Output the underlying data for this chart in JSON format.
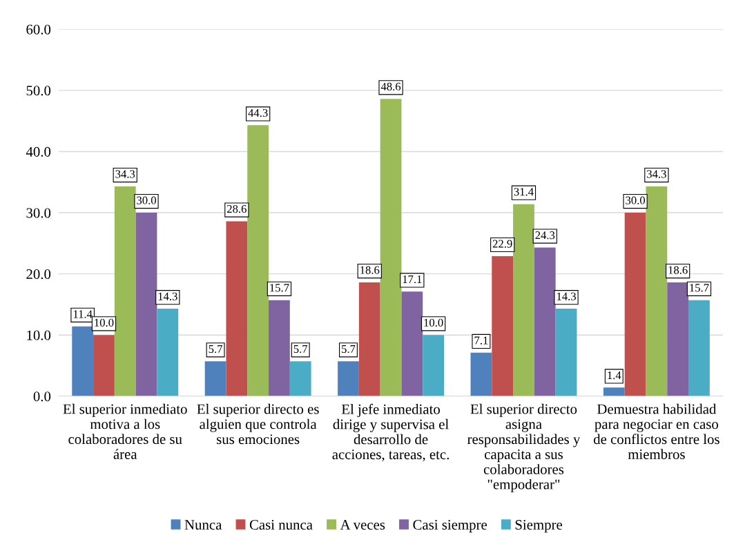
{
  "chart_data": {
    "type": "bar",
    "categories": [
      "El superior inmediato\nmotiva a los\ncolaboradores de su\nárea",
      "El superior directo es\nalguien que controla\nsus emociones",
      "El jefe inmediato\ndirige y supervisa el\ndesarrollo de\nacciones, tareas, etc.",
      "El superior directo\nasigna\nresponsabilidades y\ncapacita a sus\ncolaboradores\n\"empoderar\"",
      "Demuestra habilidad\npara negociar en caso\nde conflictos entre los\nmiembros"
    ],
    "series": [
      {
        "name": "Nunca",
        "color": "#4f81bd",
        "values": [
          11.4,
          5.7,
          5.7,
          7.1,
          1.4
        ],
        "value_labels": [
          "11.4",
          "5.7",
          "5.7",
          "7.1",
          "1.4"
        ]
      },
      {
        "name": "Casi nunca",
        "color": "#c0504d",
        "values": [
          10.0,
          28.6,
          18.6,
          22.9,
          30.0
        ],
        "value_labels": [
          "10.0",
          "28.6",
          "18.6",
          "22.9",
          "30.0"
        ]
      },
      {
        "name": "A veces",
        "color": "#9bbb59",
        "values": [
          34.3,
          44.3,
          48.6,
          31.4,
          34.3
        ],
        "value_labels": [
          "34.3",
          "44.3",
          "48.6",
          "31.4",
          "34.3"
        ]
      },
      {
        "name": "Casi siempre",
        "color": "#8064a2",
        "values": [
          30.0,
          15.7,
          17.1,
          24.3,
          18.6
        ],
        "value_labels": [
          "30.0",
          "15.7",
          "17.1",
          "24.3",
          "18.6"
        ]
      },
      {
        "name": "Siempre",
        "color": "#4bacc6",
        "values": [
          14.3,
          5.7,
          10.0,
          14.3,
          15.7
        ],
        "value_labels": [
          "14.3",
          "5.7",
          "10.0",
          "14.3",
          "15.7"
        ]
      }
    ],
    "ylim": [
      0,
      60
    ],
    "yticks": [
      {
        "value": 0,
        "label": "0.0"
      },
      {
        "value": 10,
        "label": "10.0"
      },
      {
        "value": 20,
        "label": "20.0"
      },
      {
        "value": 30,
        "label": "30.0"
      },
      {
        "value": 40,
        "label": "40.0"
      },
      {
        "value": 50,
        "label": "50.0"
      },
      {
        "value": 60,
        "label": "60.0"
      }
    ],
    "grid": "y",
    "legend": "bottom"
  }
}
